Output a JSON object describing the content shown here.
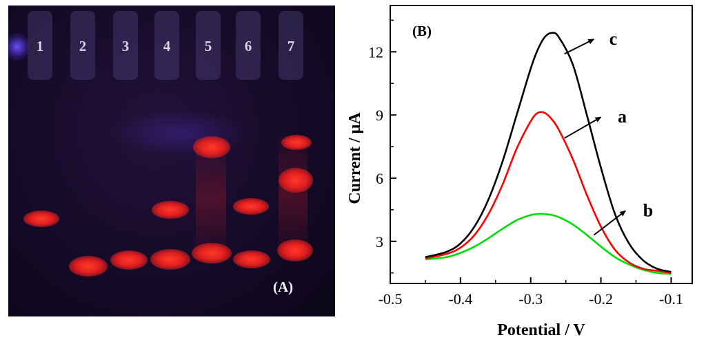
{
  "gel": {
    "lanes": [
      "1",
      "2",
      "3",
      "4",
      "5",
      "6",
      "7"
    ],
    "panel_label": "(A)"
  },
  "chart_data": {
    "type": "line",
    "panel_label": "(B)",
    "xlabel": "Potential / V",
    "ylabel": "Current / μA",
    "xlim": [
      -0.5,
      -0.07
    ],
    "ylim": [
      1.0,
      14.2
    ],
    "x_ticks": [
      -0.5,
      -0.4,
      -0.3,
      -0.2,
      -0.1
    ],
    "x_tick_labels": [
      "-0.5",
      "-0.4",
      "-0.3",
      "-0.2",
      "-0.1"
    ],
    "y_ticks": [
      3,
      6,
      9,
      12
    ],
    "y_tick_labels": [
      "3",
      "6",
      "9",
      "12"
    ],
    "grid": false,
    "series": [
      {
        "name": "a",
        "color": "#ff0000",
        "x": [
          -0.45,
          -0.42,
          -0.4,
          -0.38,
          -0.36,
          -0.34,
          -0.32,
          -0.3,
          -0.29,
          -0.28,
          -0.27,
          -0.26,
          -0.24,
          -0.22,
          -0.2,
          -0.18,
          -0.16,
          -0.14,
          -0.12,
          -0.1
        ],
        "y": [
          2.2,
          2.4,
          2.7,
          3.3,
          4.3,
          5.7,
          7.4,
          8.7,
          9.1,
          9.1,
          8.8,
          8.3,
          6.9,
          5.2,
          3.7,
          2.6,
          2.0,
          1.7,
          1.6,
          1.5
        ]
      },
      {
        "name": "b",
        "color": "#00dd00",
        "x": [
          -0.45,
          -0.42,
          -0.4,
          -0.38,
          -0.36,
          -0.34,
          -0.32,
          -0.3,
          -0.29,
          -0.28,
          -0.27,
          -0.26,
          -0.24,
          -0.22,
          -0.2,
          -0.18,
          -0.16,
          -0.14,
          -0.12,
          -0.1
        ],
        "y": [
          2.15,
          2.25,
          2.45,
          2.75,
          3.15,
          3.6,
          4.0,
          4.25,
          4.3,
          4.3,
          4.25,
          4.15,
          3.8,
          3.3,
          2.75,
          2.25,
          1.9,
          1.65,
          1.5,
          1.45
        ]
      },
      {
        "name": "c",
        "color": "#000000",
        "x": [
          -0.45,
          -0.42,
          -0.4,
          -0.38,
          -0.36,
          -0.34,
          -0.32,
          -0.3,
          -0.29,
          -0.28,
          -0.27,
          -0.26,
          -0.24,
          -0.22,
          -0.2,
          -0.18,
          -0.16,
          -0.14,
          -0.12,
          -0.1
        ],
        "y": [
          2.25,
          2.5,
          2.9,
          3.7,
          5.0,
          6.8,
          9.0,
          11.2,
          12.1,
          12.7,
          12.9,
          12.7,
          11.4,
          9.0,
          6.5,
          4.3,
          2.9,
          2.1,
          1.7,
          1.55
        ]
      }
    ],
    "annotations": [
      {
        "label": "c",
        "series": "c",
        "from": [
          -0.252,
          11.9
        ],
        "to": [
          -0.21,
          12.6
        ],
        "text_at": [
          -0.188,
          12.6
        ]
      },
      {
        "label": "a",
        "series": "a",
        "from": [
          -0.252,
          7.9
        ],
        "to": [
          -0.2,
          8.9
        ],
        "text_at": [
          -0.176,
          8.9
        ]
      },
      {
        "label": "b",
        "series": "b",
        "from": [
          -0.21,
          3.3
        ],
        "to": [
          -0.165,
          4.45
        ],
        "text_at": [
          -0.14,
          4.45
        ]
      }
    ]
  }
}
